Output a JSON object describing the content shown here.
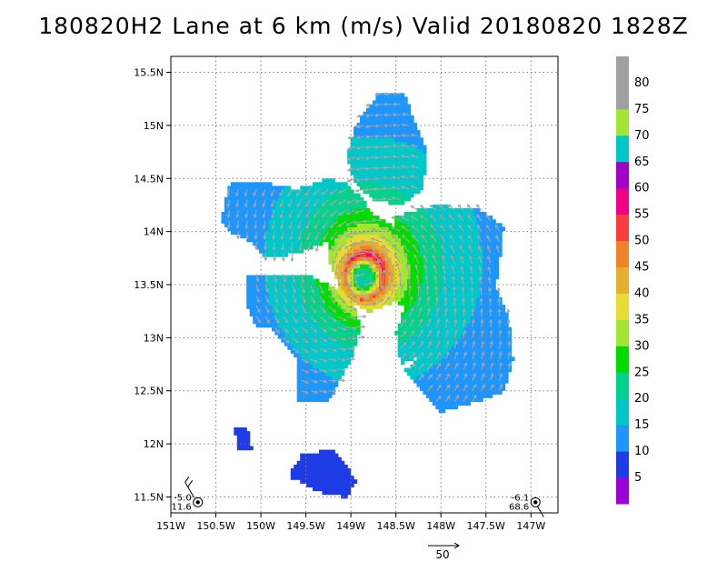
{
  "title": "180820H2 Lane at 6 km (m/s) Valid 20180820 1828Z",
  "chart_data": {
    "type": "heatmap",
    "title": "180820H2 Lane at 6 km (m/s) Valid 20180820 1828Z",
    "xlabel": "",
    "ylabel": "",
    "xlim": [
      -151.0,
      -146.7
    ],
    "ylim": [
      11.35,
      15.65
    ],
    "x_ticks": [
      {
        "value": -151.0,
        "label": "151W"
      },
      {
        "value": -150.5,
        "label": "150.5W"
      },
      {
        "value": -150.0,
        "label": "150W"
      },
      {
        "value": -149.5,
        "label": "149.5W"
      },
      {
        "value": -149.0,
        "label": "149W"
      },
      {
        "value": -148.5,
        "label": "148.5W"
      },
      {
        "value": -148.0,
        "label": "148W"
      },
      {
        "value": -147.5,
        "label": "147.5W"
      },
      {
        "value": -147.0,
        "label": "147W"
      }
    ],
    "y_ticks": [
      {
        "value": 11.5,
        "label": "11.5N"
      },
      {
        "value": 12.0,
        "label": "12N"
      },
      {
        "value": 12.5,
        "label": "12.5N"
      },
      {
        "value": 13.0,
        "label": "13N"
      },
      {
        "value": 13.5,
        "label": "13.5N"
      },
      {
        "value": 14.0,
        "label": "14N"
      },
      {
        "value": 14.5,
        "label": "14.5N"
      },
      {
        "value": 15.0,
        "label": "15N"
      },
      {
        "value": 15.5,
        "label": "15.5N"
      }
    ],
    "grid": true,
    "legend": {
      "position": "right",
      "levels": [
        {
          "label": "5",
          "color": "#9b00d6"
        },
        {
          "label": "10",
          "color": "#1e3ce6"
        },
        {
          "label": "15",
          "color": "#1e96ff"
        },
        {
          "label": "20",
          "color": "#00c8c8"
        },
        {
          "label": "25",
          "color": "#00d28c"
        },
        {
          "label": "30",
          "color": "#00dc00"
        },
        {
          "label": "35",
          "color": "#a0e632"
        },
        {
          "label": "40",
          "color": "#e6dc32"
        },
        {
          "label": "45",
          "color": "#e6af2d"
        },
        {
          "label": "50",
          "color": "#f08228"
        },
        {
          "label": "55",
          "color": "#fa3c3c"
        },
        {
          "label": "60",
          "color": "#f00082"
        },
        {
          "label": "65",
          "color": "#a000c8"
        },
        {
          "label": "70",
          "color": "#00c8c8"
        },
        {
          "label": "75",
          "color": "#a0e632"
        },
        {
          "label": "80",
          "color": "#a0a0a0"
        }
      ]
    },
    "storm_center": {
      "lon": -148.85,
      "lat": 13.58
    },
    "wind_field": {
      "units": "m/s",
      "max_wind": 50,
      "rmw_deg": 0.22,
      "regions": [
        {
          "name": "north-band",
          "polygon": [
            [
              -148.7,
              15.3
            ],
            [
              -148.4,
              15.3
            ],
            [
              -148.3,
              15.05
            ],
            [
              -148.15,
              14.75
            ],
            [
              -148.2,
              14.4
            ],
            [
              -148.45,
              14.25
            ],
            [
              -148.75,
              14.3
            ],
            [
              -148.95,
              14.45
            ],
            [
              -149.05,
              14.7
            ],
            [
              -148.95,
              15.0
            ]
          ]
        },
        {
          "name": "northwest-lobe",
          "polygon": [
            [
              -150.35,
              14.45
            ],
            [
              -149.9,
              14.45
            ],
            [
              -149.6,
              14.4
            ],
            [
              -149.25,
              14.5
            ],
            [
              -149.05,
              14.45
            ],
            [
              -148.85,
              14.3
            ],
            [
              -148.75,
              14.1
            ],
            [
              -149.15,
              13.95
            ],
            [
              -149.6,
              13.8
            ],
            [
              -149.95,
              13.75
            ],
            [
              -150.1,
              13.9
            ],
            [
              -150.35,
              14.0
            ],
            [
              -150.45,
              14.1
            ]
          ]
        },
        {
          "name": "east-band",
          "polygon": [
            [
              -148.5,
              14.15
            ],
            [
              -148.05,
              14.25
            ],
            [
              -147.55,
              14.2
            ],
            [
              -147.3,
              14.05
            ],
            [
              -147.4,
              13.4
            ],
            [
              -147.7,
              13.2
            ],
            [
              -148.0,
              12.9
            ],
            [
              -148.45,
              12.75
            ],
            [
              -148.5,
              13.05
            ],
            [
              -148.4,
              13.3
            ],
            [
              -148.7,
              13.4
            ]
          ]
        },
        {
          "name": "southeast-band",
          "polygon": [
            [
              -147.4,
              13.5
            ],
            [
              -147.25,
              13.2
            ],
            [
              -147.2,
              12.8
            ],
            [
              -147.3,
              12.5
            ],
            [
              -147.6,
              12.4
            ],
            [
              -148.0,
              12.3
            ],
            [
              -148.2,
              12.5
            ],
            [
              -148.4,
              12.7
            ],
            [
              -148.2,
              12.85
            ],
            [
              -148.0,
              12.9
            ]
          ]
        },
        {
          "name": "southwest-band",
          "polygon": [
            [
              -150.15,
              13.6
            ],
            [
              -149.5,
              13.6
            ],
            [
              -149.0,
              13.4
            ],
            [
              -148.9,
              13.1
            ],
            [
              -149.0,
              12.8
            ],
            [
              -149.25,
              12.4
            ],
            [
              -149.6,
              12.4
            ],
            [
              -149.6,
              12.8
            ],
            [
              -149.9,
              13.1
            ],
            [
              -150.05,
              13.1
            ],
            [
              -150.15,
              13.3
            ]
          ]
        },
        {
          "name": "core",
          "polygon": [
            [
              -149.2,
              14.15
            ],
            [
              -148.8,
              14.2
            ],
            [
              -148.45,
              14.0
            ],
            [
              -148.35,
              13.7
            ],
            [
              -148.5,
              13.35
            ],
            [
              -148.8,
              13.25
            ],
            [
              -149.1,
              13.4
            ],
            [
              -149.25,
              13.75
            ]
          ]
        },
        {
          "name": "south-fragment-a",
          "polygon": [
            [
              -150.3,
              12.15
            ],
            [
              -150.15,
              12.15
            ],
            [
              -150.1,
              11.95
            ],
            [
              -150.25,
              11.95
            ]
          ]
        },
        {
          "name": "south-fragment-b",
          "polygon": [
            [
              -149.55,
              11.9
            ],
            [
              -149.2,
              11.95
            ],
            [
              -149.05,
              11.8
            ],
            [
              -148.95,
              11.65
            ],
            [
              -149.05,
              11.5
            ],
            [
              -149.35,
              11.55
            ],
            [
              -149.7,
              11.7
            ]
          ]
        }
      ]
    },
    "reference_vector": {
      "label": "50",
      "value": 50
    },
    "annotations": [
      {
        "name": "southwest-station",
        "lon": -150.7,
        "lat": 11.45,
        "lines": [
          "-5.0",
          "11.6"
        ]
      },
      {
        "name": "southeast-station",
        "lon": -146.95,
        "lat": 11.45,
        "lines": [
          "-6.1",
          "68.6"
        ]
      }
    ]
  }
}
